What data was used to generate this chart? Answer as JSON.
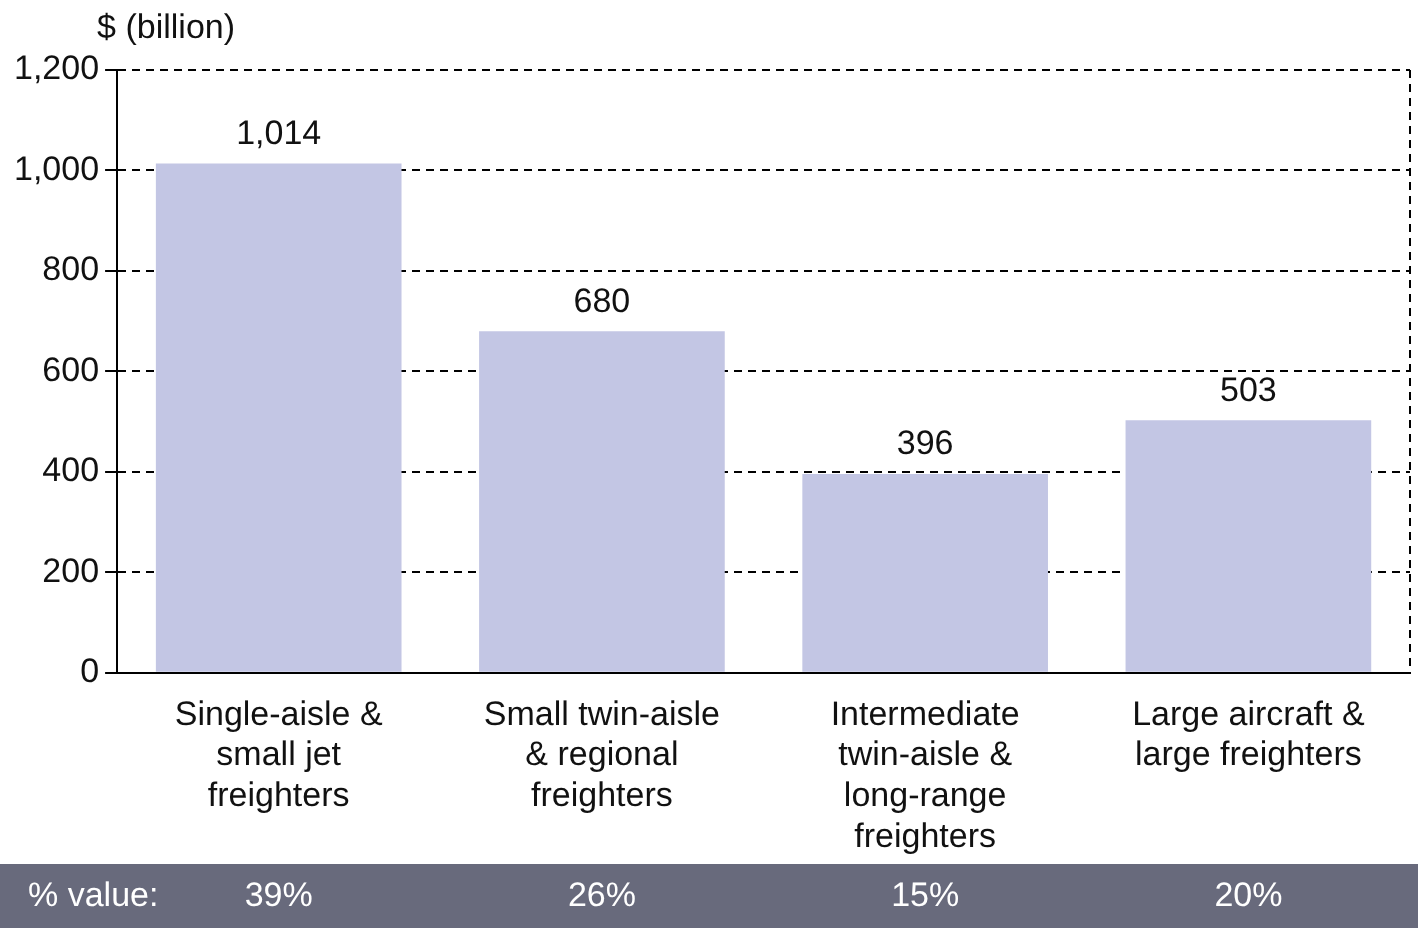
{
  "chart_data": {
    "type": "bar",
    "ylabel": "$ (billion)",
    "categories": [
      "Single-aisle & small jet freighters",
      "Small twin-aisle & regional freighters",
      "Intermediate twin-aisle & long-range freighters",
      "Large aircraft & large freighters"
    ],
    "values": [
      1014,
      680,
      396,
      503
    ],
    "color": "#c3c6e4",
    "data_labels": true,
    "value_labels": [
      "1,014",
      "680",
      "396",
      "503"
    ],
    "ylim": [
      0,
      1200
    ],
    "yticks": [
      0,
      200,
      400,
      600,
      800,
      {
        "value": 1000,
        "label": "1,000"
      },
      {
        "value": 1200,
        "label": "1,200"
      }
    ],
    "grid": "y",
    "annotations": [
      "% value:",
      "39%",
      "26%",
      "15%",
      "20%"
    ]
  }
}
